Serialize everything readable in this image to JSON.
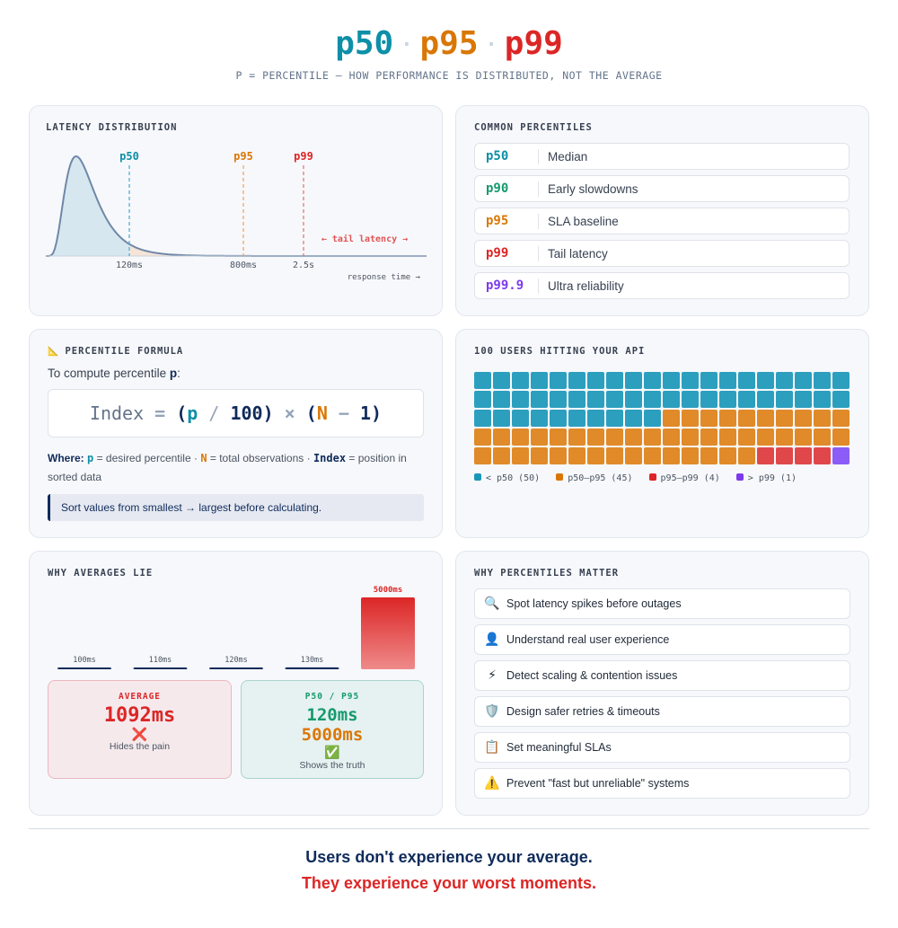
{
  "colors": {
    "p50": "#0e8fa8",
    "p90": "#159a6c",
    "p95": "#d97706",
    "p99": "#dc2626",
    "p999": "#7c3aed",
    "navy": "#0f2b5b",
    "teal_cell": "#2c9fbf",
    "orange_cell": "#e08a2a",
    "red_cell": "#e0474a",
    "purple_cell": "#8b5cf6"
  },
  "header": {
    "t1": "p50",
    "t2": "p95",
    "t3": "p99",
    "sep": "·",
    "subtitle": "P = PERCENTILE — HOW PERFORMANCE IS DISTRIBUTED, NOT THE AVERAGE"
  },
  "dist": {
    "title": "LATENCY DISTRIBUTION",
    "m1": "p50",
    "m2": "p95",
    "m3": "p99",
    "x1": "120ms",
    "x2": "800ms",
    "x3": "2.5s",
    "tail": "← tail latency →",
    "axis": "response time →"
  },
  "common": {
    "title": "COMMON PERCENTILES",
    "rows": [
      {
        "p": "p50",
        "d": "Median"
      },
      {
        "p": "p90",
        "d": "Early slowdowns"
      },
      {
        "p": "p95",
        "d": "SLA baseline"
      },
      {
        "p": "p99",
        "d": "Tail latency"
      },
      {
        "p": "p99.9",
        "d": "Ultra reliability"
      }
    ]
  },
  "formula": {
    "icon": "📐",
    "title": "PERCENTILE FORMULA",
    "intro_a": "To compute percentile ",
    "intro_p": "p",
    "intro_b": ":",
    "f_index": "Index",
    "f_eq": " = ",
    "f_open": "(",
    "f_p": "p",
    "f_div": " / ",
    "f_100": "100",
    "f_close": ")",
    "f_times": " × ",
    "f_open2": "(",
    "f_n": "N",
    "f_minus": " − ",
    "f_1": "1",
    "f_close2": ")",
    "where_lbl": "Where:",
    "w_p": "p",
    "w_p_desc": " = desired percentile · ",
    "w_n": "N",
    "w_n_desc": " = total observations · ",
    "w_i": "Index",
    "w_i_desc": " = position in sorted data",
    "note": "Sort values from smallest → largest before calculating."
  },
  "users": {
    "title": "100 USERS HITTING YOUR API",
    "counts": {
      "teal": 50,
      "orange": 45,
      "red": 4,
      "purple": 1
    },
    "legend": [
      "< p50 (50)",
      "p50–p95 (45)",
      "p95–p99 (4)",
      "> p99 (1)"
    ]
  },
  "averages": {
    "title": "WHY AVERAGES LIE",
    "bars": [
      {
        "label": "100ms",
        "value": 100
      },
      {
        "label": "110ms",
        "value": 110
      },
      {
        "label": "120ms",
        "value": 120
      },
      {
        "label": "130ms",
        "value": 130
      },
      {
        "label": "5000ms",
        "value": 5000
      }
    ],
    "avg_label": "AVERAGE",
    "avg_value": "1092ms",
    "avg_icon": "❌",
    "avg_caption": "Hides the pain",
    "pct_label": "P50 / P95",
    "pct_v1": "120ms",
    "pct_v2": "5000ms",
    "pct_icon": "✅",
    "pct_caption": "Shows the truth"
  },
  "matter": {
    "title": "WHY PERCENTILES MATTER",
    "items": [
      {
        "icon": "🔍",
        "text": "Spot latency spikes before outages"
      },
      {
        "icon": "👤",
        "text": "Understand real user experience"
      },
      {
        "icon": "⚡",
        "text": "Detect scaling & contention issues"
      },
      {
        "icon": "🛡️",
        "text": "Design safer retries & timeouts"
      },
      {
        "icon": "📋",
        "text": "Set meaningful SLAs"
      },
      {
        "icon": "⚠️",
        "text": "Prevent \"fast but unreliable\" systems"
      }
    ]
  },
  "footer": {
    "line1": "Users don't experience your average.",
    "line2": "They experience your worst moments."
  }
}
